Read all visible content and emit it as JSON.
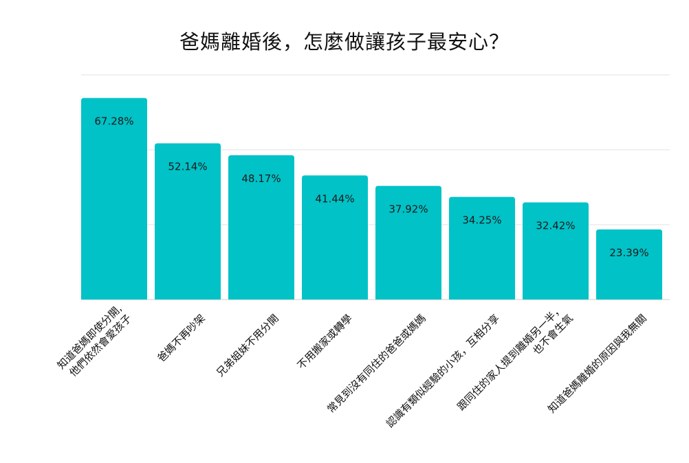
{
  "chart_data": {
    "type": "bar",
    "title": "爸媽離婚後，怎麼做讓孩子最安心？",
    "categories": [
      [
        "知道爸媽即使分開,",
        "他們依然會愛孩子"
      ],
      [
        "爸媽不再吵架"
      ],
      [
        "兄弟姐妹不用分開"
      ],
      [
        "不用搬家或轉學"
      ],
      [
        "常見到沒有同住的爸爸或媽媽"
      ],
      [
        "認識有類似經驗的小孩，互相分享"
      ],
      [
        "跟同住的家人提到離婚另一半，",
        "也不會生氣"
      ],
      [
        "知道爸媽離婚的原因與我無關"
      ]
    ],
    "values": [
      67.28,
      52.14,
      48.17,
      41.44,
      37.92,
      34.25,
      32.42,
      23.39
    ],
    "value_labels": [
      "67.28%",
      "52.14%",
      "48.17%",
      "41.44%",
      "37.92%",
      "34.25%",
      "32.42%",
      "23.39%"
    ],
    "ylim": [
      0,
      75
    ],
    "yticks": [
      0,
      25,
      50,
      75
    ],
    "grid": true,
    "xlabel": "",
    "ylabel": "",
    "bar_color": "#00c2c7",
    "grid_color": "#e2e2e2",
    "baseline_color": "#cccccc"
  }
}
